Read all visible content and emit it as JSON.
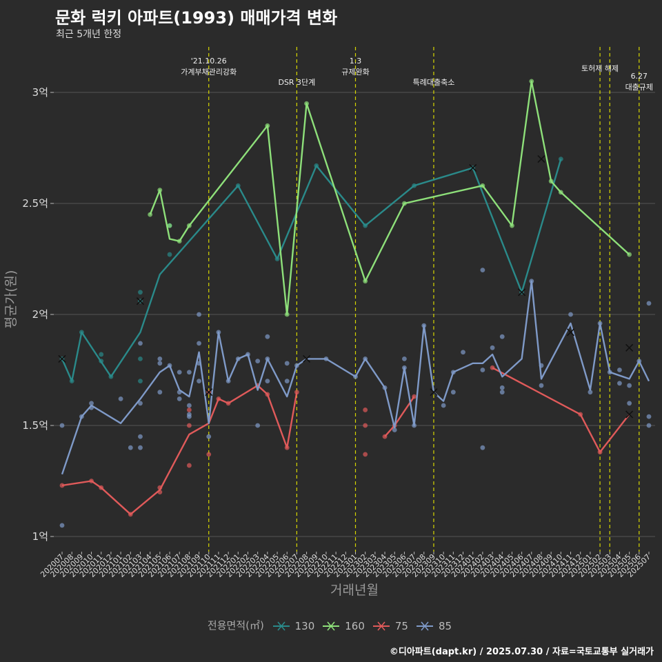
{
  "title": "문화 럭키 아파트(1993) 매매가격 변화",
  "subtitle": "최근 5개년 한정",
  "caption": "©디아파트(dapt.kr) / 2025.07.30 / 자료=국토교통부 실거래가",
  "colors": {
    "background": "#2b2b2b",
    "grid": "#555555",
    "vline": "#d8d800",
    "s130": "#2a8a8a",
    "s160": "#8ee07a",
    "s75": "#e05a5a",
    "s85": "#7f9ac8"
  },
  "chart_data": {
    "type": "line",
    "title": "문화 럭키 아파트(1993) 매매가격 변화",
    "subtitle": "최근 5개년 한정",
    "xlabel": "거래년월",
    "ylabel": "평균가(원)",
    "ylim": [
      0.95,
      3.2
    ],
    "yticks": [
      {
        "v": 1.0,
        "label": "1억"
      },
      {
        "v": 1.5,
        "label": "1.5억"
      },
      {
        "v": 2.0,
        "label": "2억"
      },
      {
        "v": 2.5,
        "label": "2.5억"
      },
      {
        "v": 3.0,
        "label": "3억"
      }
    ],
    "categories": [
      "202007",
      "202008",
      "202009",
      "202010",
      "202011",
      "202012",
      "202101",
      "202102",
      "202103",
      "202104",
      "202105",
      "202106",
      "202107",
      "202108",
      "202109",
      "202110",
      "202111",
      "202112",
      "202201",
      "202202",
      "202203",
      "202204",
      "202205",
      "202206",
      "202207",
      "202208",
      "202209",
      "202210",
      "202211",
      "202212",
      "202301",
      "202302",
      "202303",
      "202304",
      "202305",
      "202306",
      "202307",
      "202308",
      "202309",
      "202310",
      "202311",
      "202312",
      "202401",
      "202402",
      "202403",
      "202404",
      "202405",
      "202406",
      "202407",
      "202408",
      "202409",
      "202410",
      "202411",
      "202412",
      "202501",
      "202502",
      "202503",
      "202504",
      "202505",
      "202506",
      "202507"
    ],
    "legend_title": "전용면적(㎡)",
    "legend_placement": "bottom",
    "grid": true,
    "events": [
      {
        "month": "202110",
        "label": "'21.10.26\n가계부채관리강화"
      },
      {
        "month": "202207",
        "label": "DSR 3단계"
      },
      {
        "month": "202301",
        "label": "1.3\n규제완화"
      },
      {
        "month": "202309",
        "label": "특례대출축소"
      },
      {
        "month": "202502",
        "label": "토허제 해제"
      },
      {
        "month": "202503",
        "label": ""
      },
      {
        "month": "202506",
        "label": "6.27\n대출규제"
      }
    ],
    "series": [
      {
        "name": "130",
        "color": "#2a8a8a",
        "line": [
          [
            "202007",
            1.8
          ],
          [
            "202008",
            1.7
          ],
          [
            "202009",
            1.92
          ],
          [
            "202012",
            1.72
          ],
          [
            "202103",
            1.92
          ],
          [
            "202105",
            2.18
          ],
          [
            "202201",
            2.58
          ],
          [
            "202205",
            2.25
          ],
          [
            "202209",
            2.67
          ],
          [
            "202302",
            2.4
          ],
          [
            "202307",
            2.58
          ],
          [
            "202401",
            2.66
          ],
          [
            "202406",
            2.1
          ],
          [
            "202410",
            2.7
          ]
        ],
        "points": [
          [
            "202007",
            1.8
          ],
          [
            "202008",
            1.7
          ],
          [
            "202009",
            1.92
          ],
          [
            "202011",
            1.82
          ],
          [
            "202011",
            1.79
          ],
          [
            "202012",
            1.72
          ],
          [
            "202103",
            2.1
          ],
          [
            "202103",
            2.06
          ],
          [
            "202103",
            1.8
          ],
          [
            "202103",
            1.7
          ],
          [
            "202106",
            2.4
          ],
          [
            "202106",
            2.27
          ],
          [
            "202201",
            2.58
          ],
          [
            "202205",
            2.25
          ],
          [
            "202209",
            2.67
          ],
          [
            "202302",
            2.4
          ],
          [
            "202307",
            2.58
          ],
          [
            "202401",
            2.66
          ],
          [
            "202406",
            2.1
          ],
          [
            "202410",
            2.7
          ]
        ],
        "crosses": [
          [
            "202007",
            1.8
          ],
          [
            "202103",
            2.06
          ],
          [
            "202401",
            2.66
          ],
          [
            "202406",
            2.1
          ],
          [
            "202408",
            2.7
          ]
        ]
      },
      {
        "name": "160",
        "color": "#8ee07a",
        "line": [
          [
            "202104",
            2.45
          ],
          [
            "202105",
            2.56
          ],
          [
            "202106",
            2.34
          ],
          [
            "202107",
            2.33
          ],
          [
            "202108",
            2.4
          ],
          [
            "202204",
            2.85
          ],
          [
            "202206",
            2.0
          ],
          [
            "202208",
            2.95
          ],
          [
            "202302",
            2.15
          ],
          [
            "202306",
            2.5
          ],
          [
            "202402",
            2.58
          ],
          [
            "202405",
            2.4
          ],
          [
            "202407",
            3.05
          ],
          [
            "202409",
            2.6
          ],
          [
            "202410",
            2.55
          ],
          [
            "202505",
            2.27
          ]
        ],
        "points": [
          [
            "202104",
            2.45
          ],
          [
            "202105",
            2.56
          ],
          [
            "202106",
            2.4
          ],
          [
            "202107",
            2.33
          ],
          [
            "202108",
            2.4
          ],
          [
            "202204",
            2.85
          ],
          [
            "202206",
            2.0
          ],
          [
            "202208",
            2.95
          ],
          [
            "202302",
            2.15
          ],
          [
            "202306",
            2.5
          ],
          [
            "202402",
            2.58
          ],
          [
            "202405",
            2.4
          ],
          [
            "202407",
            3.05
          ],
          [
            "202409",
            2.6
          ],
          [
            "202410",
            2.55
          ],
          [
            "202505",
            2.27
          ]
        ],
        "crosses": []
      },
      {
        "name": "75",
        "color": "#e05a5a",
        "line": [
          [
            "202007",
            1.23
          ],
          [
            "202010",
            1.25
          ],
          [
            "202011",
            1.22
          ],
          [
            "202102",
            1.1
          ],
          [
            "202105",
            1.21
          ],
          [
            "202108",
            1.46
          ],
          [
            "202110",
            1.51
          ],
          [
            "202111",
            1.62
          ],
          [
            "202112",
            1.6
          ],
          [
            "202203",
            1.68
          ],
          [
            "202204",
            1.64
          ],
          [
            "202206",
            1.4
          ],
          [
            "202207",
            1.65
          ]
        ],
        "line2": [
          [
            "202304",
            1.45
          ],
          [
            "202305",
            1.5
          ],
          [
            "202307",
            1.63
          ]
        ],
        "line3": [
          [
            "202403",
            1.76
          ],
          [
            "202412",
            1.55
          ],
          [
            "202502",
            1.38
          ],
          [
            "202505",
            1.55
          ]
        ],
        "points": [
          [
            "202007",
            1.23
          ],
          [
            "202010",
            1.25
          ],
          [
            "202011",
            1.22
          ],
          [
            "202102",
            1.1
          ],
          [
            "202105",
            1.22
          ],
          [
            "202105",
            1.2
          ],
          [
            "202108",
            1.57
          ],
          [
            "202108",
            1.5
          ],
          [
            "202108",
            1.32
          ],
          [
            "202110",
            1.65
          ],
          [
            "202110",
            1.37
          ],
          [
            "202111",
            1.62
          ],
          [
            "202112",
            1.6
          ],
          [
            "202203",
            1.68
          ],
          [
            "202204",
            1.64
          ],
          [
            "202206",
            1.4
          ],
          [
            "202207",
            1.65
          ],
          [
            "202302",
            1.57
          ],
          [
            "202302",
            1.5
          ],
          [
            "202302",
            1.37
          ],
          [
            "202304",
            1.45
          ],
          [
            "202305",
            1.5
          ],
          [
            "202307",
            1.63
          ],
          [
            "202403",
            1.76
          ],
          [
            "202412",
            1.55
          ],
          [
            "202502",
            1.38
          ]
        ],
        "crosses": [
          [
            "202505",
            1.55
          ]
        ]
      },
      {
        "name": "85",
        "color": "#7f9ac8",
        "line": [
          [
            "202007",
            1.28
          ],
          [
            "202009",
            1.54
          ],
          [
            "202010",
            1.59
          ],
          [
            "202101",
            1.51
          ],
          [
            "202103",
            1.62
          ],
          [
            "202105",
            1.74
          ],
          [
            "202106",
            1.77
          ],
          [
            "202107",
            1.66
          ],
          [
            "202108",
            1.63
          ],
          [
            "202109",
            1.83
          ],
          [
            "202110",
            1.51
          ],
          [
            "202111",
            1.92
          ],
          [
            "202112",
            1.7
          ],
          [
            "202201",
            1.8
          ],
          [
            "202202",
            1.82
          ],
          [
            "202203",
            1.66
          ],
          [
            "202204",
            1.8
          ],
          [
            "202206",
            1.63
          ],
          [
            "202207",
            1.77
          ],
          [
            "202208",
            1.8
          ],
          [
            "202210",
            1.8
          ],
          [
            "202301",
            1.72
          ],
          [
            "202302",
            1.8
          ],
          [
            "202304",
            1.67
          ],
          [
            "202305",
            1.49
          ],
          [
            "202306",
            1.76
          ],
          [
            "202307",
            1.5
          ],
          [
            "202308",
            1.95
          ],
          [
            "202309",
            1.65
          ],
          [
            "202310",
            1.61
          ],
          [
            "202311",
            1.74
          ],
          [
            "202401",
            1.78
          ],
          [
            "202402",
            1.78
          ],
          [
            "202403",
            1.82
          ],
          [
            "202404",
            1.72
          ],
          [
            "202406",
            1.8
          ],
          [
            "202407",
            2.15
          ],
          [
            "202408",
            1.71
          ],
          [
            "202411",
            1.96
          ],
          [
            "202501",
            1.66
          ],
          [
            "202502",
            1.96
          ],
          [
            "202503",
            1.74
          ],
          [
            "202505",
            1.71
          ],
          [
            "202506",
            1.79
          ],
          [
            "202507",
            1.7
          ]
        ],
        "points": [
          [
            "202007",
            1.5
          ],
          [
            "202007",
            1.05
          ],
          [
            "202009",
            1.54
          ],
          [
            "202010",
            1.6
          ],
          [
            "202010",
            1.58
          ],
          [
            "202101",
            1.62
          ],
          [
            "202102",
            1.4
          ],
          [
            "202103",
            1.87
          ],
          [
            "202103",
            1.6
          ],
          [
            "202103",
            1.45
          ],
          [
            "202103",
            1.4
          ],
          [
            "202105",
            1.8
          ],
          [
            "202105",
            1.78
          ],
          [
            "202105",
            1.65
          ],
          [
            "202106",
            1.77
          ],
          [
            "202107",
            1.74
          ],
          [
            "202107",
            1.65
          ],
          [
            "202107",
            1.62
          ],
          [
            "202108",
            1.74
          ],
          [
            "202108",
            1.59
          ],
          [
            "202108",
            1.55
          ],
          [
            "202108",
            1.54
          ],
          [
            "202109",
            2.0
          ],
          [
            "202109",
            1.87
          ],
          [
            "202109",
            1.78
          ],
          [
            "202109",
            1.7
          ],
          [
            "202110",
            1.45
          ],
          [
            "202111",
            1.92
          ],
          [
            "202112",
            1.7
          ],
          [
            "202201",
            1.8
          ],
          [
            "202202",
            1.82
          ],
          [
            "202203",
            1.79
          ],
          [
            "202203",
            1.5
          ],
          [
            "202204",
            1.9
          ],
          [
            "202204",
            1.8
          ],
          [
            "202204",
            1.7
          ],
          [
            "202206",
            1.78
          ],
          [
            "202206",
            1.7
          ],
          [
            "202207",
            1.77
          ],
          [
            "202210",
            1.8
          ],
          [
            "202301",
            1.72
          ],
          [
            "202302",
            1.8
          ],
          [
            "202304",
            1.67
          ],
          [
            "202305",
            1.48
          ],
          [
            "202306",
            1.8
          ],
          [
            "202306",
            1.76
          ],
          [
            "202307",
            1.5
          ],
          [
            "202308",
            1.95
          ],
          [
            "202310",
            1.59
          ],
          [
            "202311",
            1.74
          ],
          [
            "202311",
            1.65
          ],
          [
            "202312",
            1.83
          ],
          [
            "202402",
            1.75
          ],
          [
            "202402",
            1.4
          ],
          [
            "202402",
            2.2
          ],
          [
            "202403",
            1.85
          ],
          [
            "202404",
            1.9
          ],
          [
            "202404",
            1.67
          ],
          [
            "202404",
            1.65
          ],
          [
            "202407",
            2.15
          ],
          [
            "202408",
            1.77
          ],
          [
            "202408",
            1.68
          ],
          [
            "202411",
            2.0
          ],
          [
            "202501",
            1.65
          ],
          [
            "202502",
            1.96
          ],
          [
            "202503",
            1.74
          ],
          [
            "202504",
            1.75
          ],
          [
            "202504",
            1.69
          ],
          [
            "202505",
            1.68
          ],
          [
            "202505",
            1.6
          ],
          [
            "202506",
            1.79
          ],
          [
            "202507",
            2.05
          ],
          [
            "202507",
            1.54
          ],
          [
            "202507",
            1.5
          ]
        ],
        "crosses": [
          [
            "202110",
            1.65
          ],
          [
            "202208",
            1.8
          ],
          [
            "202309",
            1.65
          ],
          [
            "202411",
            1.92
          ],
          [
            "202505",
            1.85
          ]
        ]
      }
    ]
  }
}
